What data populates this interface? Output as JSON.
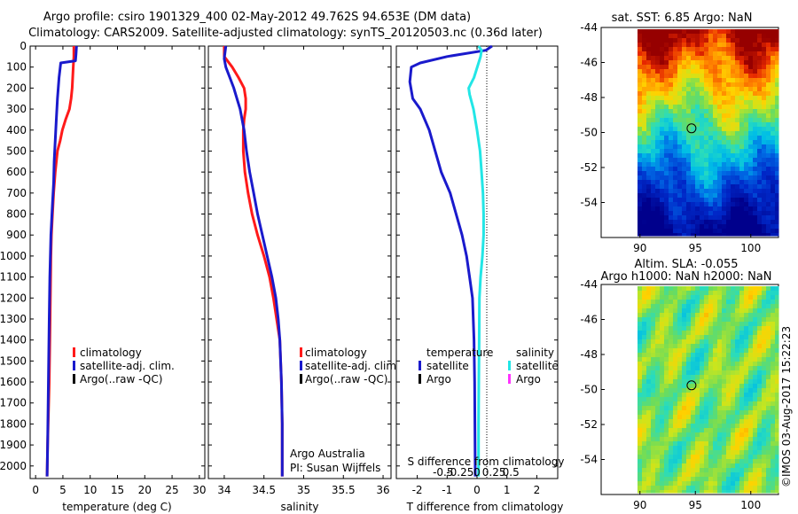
{
  "header": {
    "title_line1": "Argo profile: csiro 1901329_400 02-May-2012 49.762S 94.653E (DM data)",
    "title_line2": "Climatology: CARS2009. Satellite-adjusted climatology: synTS_20120503.nc (0.36d later)"
  },
  "colors": {
    "climatology": "#ff1a1a",
    "satellite_adj": "#1a1acc",
    "argo": "#000000",
    "t_satellite": "#1a1acc",
    "s_satellite": "#22e6e6",
    "s_argo": "#ff33ff"
  },
  "legend": {
    "climatology": "climatology",
    "satellite_adj": "satellite-adj. clim.",
    "argo_raw": "Argo(..raw -QC)",
    "temperature_head": "temperature",
    "salinity_head": "salinity",
    "satellite": "satellite",
    "argo": "Argo"
  },
  "notes": {
    "argo_australia": "Argo Australia",
    "pi": "PI: Susan Wijffels",
    "sst_title": "sat. SST: 6.85 Argo: NaN",
    "sla_title1": "Altim. SLA: -0.055",
    "sla_title2": "Argo h1000: NaN h2000: NaN",
    "watermark": "©IMOS 03-Aug-2017 15:22:23"
  },
  "chart_data": [
    {
      "type": "line",
      "panel": "temperature",
      "xlabel": "temperature (deg C)",
      "ylabel": "",
      "xlim": [
        -1,
        31
      ],
      "ylim": [
        2060,
        0
      ],
      "x_ticks": [
        0,
        5,
        10,
        15,
        20,
        25,
        30
      ],
      "x_tick_labels": [
        "0",
        "5",
        "10",
        "15",
        "20",
        "25",
        "30"
      ],
      "y_ticks": [
        0,
        100,
        200,
        300,
        400,
        500,
        600,
        700,
        800,
        900,
        1000,
        1100,
        1200,
        1300,
        1400,
        1500,
        1600,
        1700,
        1800,
        1900,
        2000
      ],
      "y_tick_labels": [
        "0",
        "100",
        "200",
        "300",
        "400",
        "500",
        "600",
        "700",
        "800",
        "900",
        "1000",
        "1100",
        "1200",
        "1300",
        "1400",
        "1500",
        "1600",
        "1700",
        "1800",
        "1900",
        "2000"
      ],
      "series": [
        {
          "name": "climatology",
          "color": "#ff1a1a",
          "x": [
            7.0,
            7.0,
            6.9,
            6.8,
            6.7,
            6.5,
            6.2,
            5.5,
            4.9,
            4.5,
            4.0,
            3.6,
            3.3,
            3.1,
            2.9,
            2.8,
            2.7,
            2.6,
            2.5,
            2.4,
            2.3,
            2.2,
            2.1
          ],
          "y": [
            0,
            50,
            100,
            150,
            200,
            250,
            300,
            350,
            400,
            450,
            500,
            600,
            700,
            800,
            900,
            1000,
            1200,
            1400,
            1600,
            1700,
            1800,
            1900,
            2050
          ]
        },
        {
          "name": "satellite-adj. clim.",
          "color": "#1a1acc",
          "x": [
            7.5,
            7.4,
            7.3,
            4.6,
            4.3,
            4.0,
            3.8,
            3.6,
            3.4,
            3.3,
            3.1,
            2.8,
            2.6,
            2.5,
            2.4,
            2.3,
            2.2,
            2.1
          ],
          "y": [
            0,
            40,
            70,
            80,
            150,
            250,
            350,
            450,
            550,
            650,
            750,
            900,
            1100,
            1300,
            1500,
            1700,
            1900,
            2050
          ]
        }
      ]
    },
    {
      "type": "line",
      "panel": "salinity",
      "xlabel": "salinity",
      "xlim": [
        33.8,
        36.1
      ],
      "ylim": [
        2060,
        0
      ],
      "x_ticks": [
        34,
        34.5,
        35,
        35.5,
        36
      ],
      "x_tick_labels": [
        "34",
        "34.5",
        "35",
        "35.5",
        "36"
      ],
      "series": [
        {
          "name": "climatology",
          "color": "#ff1a1a",
          "x": [
            34.0,
            34.0,
            34.1,
            34.18,
            34.25,
            34.27,
            34.27,
            34.25,
            34.24,
            34.24,
            34.26,
            34.3,
            34.35,
            34.42,
            34.5,
            34.57,
            34.62,
            34.66,
            34.7,
            34.72,
            34.73,
            34.73
          ],
          "y": [
            0,
            50,
            100,
            150,
            200,
            250,
            300,
            350,
            400,
            500,
            600,
            700,
            800,
            900,
            1000,
            1100,
            1200,
            1300,
            1400,
            1600,
            1800,
            2050
          ]
        },
        {
          "name": "satellite-adj. clim.",
          "color": "#1a1acc",
          "x": [
            34.02,
            34.0,
            34.02,
            34.07,
            34.12,
            34.16,
            34.2,
            34.25,
            34.28,
            34.32,
            34.37,
            34.42,
            34.48,
            34.54,
            34.6,
            34.65,
            34.68,
            34.7,
            34.72,
            34.73,
            34.73
          ],
          "y": [
            0,
            60,
            100,
            150,
            200,
            250,
            300,
            400,
            500,
            600,
            700,
            800,
            900,
            1000,
            1100,
            1200,
            1300,
            1400,
            1600,
            1800,
            2050
          ]
        }
      ]
    },
    {
      "type": "line",
      "panel": "difference",
      "xlabel": "T difference from climatology",
      "top_axis_label": "S difference from climatology",
      "xlim": [
        -2.7,
        2.7
      ],
      "ylim": [
        2060,
        0
      ],
      "x_ticks": [
        -2,
        -1,
        0,
        1,
        2
      ],
      "x_tick_labels": [
        "-2",
        "-1",
        "0",
        "1",
        "2"
      ],
      "s_ticks": [
        -0.5,
        -0.25,
        0,
        0.25,
        0.5
      ],
      "s_tick_labels": [
        "-0.5",
        "-0.25",
        "0",
        "0.25",
        "0.5"
      ],
      "series": [
        {
          "name": "temperature satellite",
          "color": "#1a1acc",
          "x": [
            0.5,
            0.3,
            -1.0,
            -1.9,
            -2.2,
            -2.25,
            -2.15,
            -1.9,
            -1.6,
            -1.4,
            -1.2,
            -0.9,
            -0.7,
            -0.5,
            -0.35,
            -0.25,
            -0.15,
            -0.1,
            -0.08,
            -0.07,
            -0.06
          ],
          "y": [
            0,
            20,
            50,
            80,
            100,
            170,
            250,
            300,
            400,
            500,
            600,
            700,
            800,
            900,
            1000,
            1100,
            1200,
            1400,
            1600,
            1800,
            2050
          ]
        },
        {
          "name": "salinity satellite",
          "color": "#22e6e6",
          "x": [
            0.05,
            0.15,
            0.12,
            -0.1,
            -0.28,
            -0.25,
            -0.12,
            0.0,
            0.1,
            0.15,
            0.2,
            0.22,
            0.22,
            0.18,
            0.12,
            0.08,
            0.07,
            0.06,
            0.05,
            0.05
          ],
          "y": [
            0,
            20,
            50,
            150,
            200,
            230,
            300,
            400,
            500,
            600,
            700,
            800,
            900,
            1000,
            1100,
            1200,
            1400,
            1600,
            1800,
            2050
          ]
        }
      ]
    },
    {
      "type": "heatmap",
      "panel": "sst_map",
      "title": "sat. SST: 6.85 Argo: NaN",
      "xlim": [
        86.5,
        102.5
      ],
      "ylim": [
        -56,
        -44
      ],
      "x_ticks": [
        90,
        95,
        100
      ],
      "x_tick_labels": [
        "90",
        "95",
        "100"
      ],
      "y_ticks": [
        -44,
        -46,
        -48,
        -50,
        -52,
        -54
      ],
      "y_tick_labels": [
        "-44",
        "-46",
        "-48",
        "-50",
        "-52",
        "-54"
      ],
      "marker": {
        "lon": 94.65,
        "lat": -49.76
      }
    },
    {
      "type": "heatmap",
      "panel": "sla_map",
      "title": "Altim. SLA: -0.055",
      "xlim": [
        86.5,
        102.5
      ],
      "ylim": [
        -56,
        -44
      ],
      "x_ticks": [
        90,
        95,
        100
      ],
      "x_tick_labels": [
        "90",
        "95",
        "100"
      ],
      "y_ticks": [
        -44,
        -46,
        -48,
        -50,
        -52,
        -54
      ],
      "y_tick_labels": [
        "-44",
        "-46",
        "-48",
        "-50",
        "-52",
        "-54"
      ],
      "marker": {
        "lon": 94.65,
        "lat": -49.76
      }
    }
  ]
}
